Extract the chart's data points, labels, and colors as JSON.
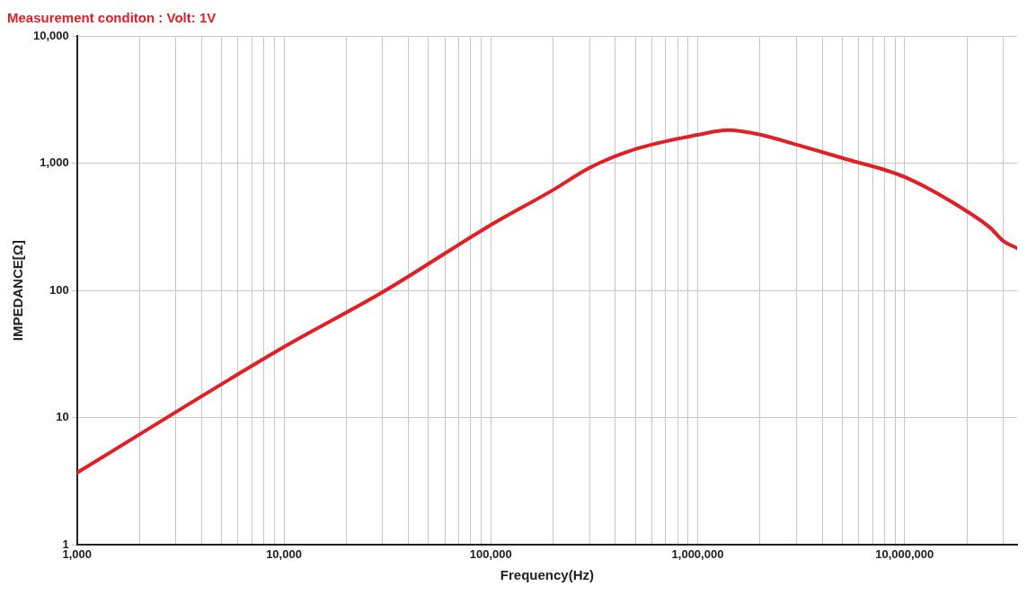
{
  "chart_data": {
    "type": "line",
    "title": "Measurement conditon : Volt: 1V",
    "xlabel": "Frequency(Hz)",
    "ylabel": "IMPEDANCE[Ω]",
    "x": [
      1000,
      10000,
      30000,
      100000,
      200000,
      300000,
      500000,
      1000000,
      1400000,
      2000000,
      3000000,
      5000000,
      10000000,
      20000000,
      26000000,
      30000000,
      35000000
    ],
    "series": [
      {
        "color": "#e31e24",
        "values": [
          3.7,
          36,
          97,
          327,
          616,
          920,
          1290,
          1670,
          1820,
          1680,
          1400,
          1100,
          780,
          420,
          310,
          245,
          215
        ]
      }
    ],
    "log": "xy",
    "grid": true,
    "legend": false,
    "marker": "none",
    "line_style": "solid",
    "xlim": [
      1000,
      35000000
    ],
    "xticks": [
      {
        "value": 1000,
        "label": "1,000"
      },
      {
        "value": 2000,
        "label": null
      },
      {
        "value": 3000,
        "label": null
      },
      {
        "value": 4000,
        "label": null
      },
      {
        "value": 5000,
        "label": null
      },
      {
        "value": 6000,
        "label": null
      },
      {
        "value": 7000,
        "label": null
      },
      {
        "value": 8000,
        "label": null
      },
      {
        "value": 9000,
        "label": null
      },
      {
        "value": 10000,
        "label": "10,000"
      },
      {
        "value": 20000,
        "label": null
      },
      {
        "value": 30000,
        "label": null
      },
      {
        "value": 40000,
        "label": null
      },
      {
        "value": 50000,
        "label": null
      },
      {
        "value": 60000,
        "label": null
      },
      {
        "value": 70000,
        "label": null
      },
      {
        "value": 80000,
        "label": null
      },
      {
        "value": 90000,
        "label": null
      },
      {
        "value": 100000,
        "label": "100,000"
      },
      {
        "value": 200000,
        "label": null
      },
      {
        "value": 300000,
        "label": null
      },
      {
        "value": 400000,
        "label": null
      },
      {
        "value": 500000,
        "label": null
      },
      {
        "value": 600000,
        "label": null
      },
      {
        "value": 700000,
        "label": null
      },
      {
        "value": 800000,
        "label": null
      },
      {
        "value": 900000,
        "label": null
      },
      {
        "value": 1000000,
        "label": "1,000,000"
      },
      {
        "value": 2000000,
        "label": null
      },
      {
        "value": 3000000,
        "label": null
      },
      {
        "value": 4000000,
        "label": null
      },
      {
        "value": 5000000,
        "label": null
      },
      {
        "value": 6000000,
        "label": null
      },
      {
        "value": 7000000,
        "label": null
      },
      {
        "value": 8000000,
        "label": null
      },
      {
        "value": 9000000,
        "label": null
      },
      {
        "value": 10000000,
        "label": "10,000,000"
      },
      {
        "value": 20000000,
        "label": null
      },
      {
        "value": 30000000,
        "label": null
      }
    ],
    "ylim": [
      1,
      10000
    ],
    "yticks": [
      {
        "value": 1,
        "label": "1"
      },
      {
        "value": 10,
        "label": "10"
      },
      {
        "value": 100,
        "label": "100"
      },
      {
        "value": 1000,
        "label": "1,000"
      },
      {
        "value": 10000,
        "label": "10,000"
      }
    ]
  }
}
